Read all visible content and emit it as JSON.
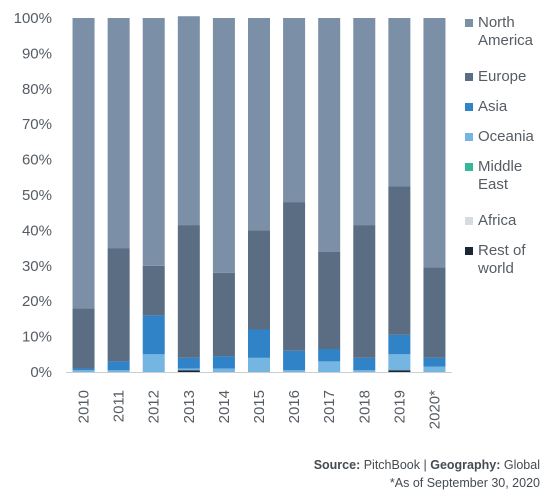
{
  "chart_data": {
    "type": "bar",
    "stacked": true,
    "percent": true,
    "categories": [
      "2010",
      "2011",
      "2012",
      "2013",
      "2014",
      "2015",
      "2016",
      "2017",
      "2018",
      "2019",
      "2020*"
    ],
    "series": [
      {
        "name": "Rest of world",
        "color": "#1a2633",
        "values": [
          0,
          0,
          0,
          0.5,
          0,
          0,
          0,
          0,
          0,
          0.5,
          0
        ]
      },
      {
        "name": "Africa",
        "color": "#d6dbe0",
        "values": [
          0,
          0,
          0,
          0,
          0,
          0,
          0,
          0,
          0,
          0,
          0
        ]
      },
      {
        "name": "Middle East",
        "color": "#35b89a",
        "values": [
          0,
          0,
          0,
          0,
          0,
          0,
          0,
          0,
          0,
          0,
          0
        ]
      },
      {
        "name": "Oceania",
        "color": "#74b5e2",
        "values": [
          0.5,
          0.5,
          5,
          0.5,
          1,
          4,
          0.5,
          3,
          0.5,
          4.5,
          1.5
        ]
      },
      {
        "name": "Asia",
        "color": "#2f83c6",
        "values": [
          0.5,
          2.5,
          11,
          3,
          3.5,
          8,
          5.5,
          3.5,
          3.5,
          5.5,
          2.5
        ]
      },
      {
        "name": "Europe",
        "color": "#5a6d82",
        "values": [
          17,
          32,
          14,
          37.5,
          23.5,
          28,
          42,
          27.5,
          37.5,
          42,
          25.5
        ]
      },
      {
        "name": "North America",
        "color": "#7b8fa6",
        "values": [
          82,
          65,
          70,
          59,
          72,
          60,
          52,
          66,
          58.5,
          47.5,
          70.5
        ]
      }
    ],
    "legend_order": [
      "North America",
      "Europe",
      "Asia",
      "Oceania",
      "Middle East",
      "Africa",
      "Rest of world"
    ],
    "y_ticks": [
      "0%",
      "10%",
      "20%",
      "30%",
      "40%",
      "50%",
      "60%",
      "70%",
      "80%",
      "90%",
      "100%"
    ],
    "ylim": [
      0,
      100
    ],
    "legend_position": "right",
    "grid": false
  },
  "footer": {
    "source_label": "Source:",
    "source_value": "PitchBook",
    "separator": "|",
    "geography_label": "Geography:",
    "geography_value": "Global",
    "note": "*As of September 30, 2020"
  }
}
